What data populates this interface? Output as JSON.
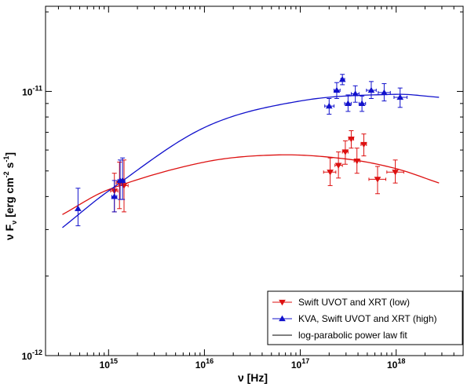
{
  "chart_data": {
    "type": "scatter",
    "title": "",
    "xlabel": "ν [Hz]",
    "ylabel": "ν F_ν [erg cm^-2 s^-1]",
    "xscale": "log",
    "yscale": "log",
    "xlim": [
      220000000000000.0,
      5e+18
    ],
    "ylim": [
      1e-12,
      2.1e-11
    ],
    "x_tick_labels": [
      {
        "mantissa": "10",
        "exp": "15",
        "value": 1000000000000000.0
      },
      {
        "mantissa": "10",
        "exp": "16",
        "value": 1e+16
      },
      {
        "mantissa": "10",
        "exp": "17",
        "value": 1e+17
      },
      {
        "mantissa": "10",
        "exp": "18",
        "value": 1e+18
      }
    ],
    "y_tick_labels": [
      {
        "mantissa": "10",
        "exp": "-12",
        "value": 1e-12
      },
      {
        "mantissa": "10",
        "exp": "-11",
        "value": 1e-11
      }
    ],
    "grid": false,
    "legend_position": "bottom-right",
    "series": [
      {
        "name": "Swift UVOT and XRT (low)",
        "color": "#dd1111",
        "marker": "triangle-down",
        "points": [
          {
            "x": 1150000000000000.0,
            "y": 4.2e-12,
            "xerr": [
              1050000000000000.0,
              1250000000000000.0
            ],
            "yerr": [
              3.5e-12,
              4.9e-12
            ]
          },
          {
            "x": 1300000000000000.0,
            "y": 4.5e-12,
            "xerr": [
              1200000000000000.0,
              1400000000000000.0
            ],
            "yerr": [
              3.6e-12,
              5.4e-12
            ]
          },
          {
            "x": 1450000000000000.0,
            "y": 4.4e-12,
            "xerr": [
              1300000000000000.0,
              1600000000000000.0
            ],
            "yerr": [
              3.5e-12,
              5.5e-12
            ]
          },
          {
            "x": 2.05e+17,
            "y": 4.95e-12,
            "xerr": [
              1.75e+17,
              2.35e+17
            ],
            "yerr": [
              4.4e-12,
              5.6e-12
            ]
          },
          {
            "x": 2.5e+17,
            "y": 5.25e-12,
            "xerr": [
              2.3e+17,
              2.75e+17
            ],
            "yerr": [
              4.7e-12,
              5.9e-12
            ]
          },
          {
            "x": 2.95e+17,
            "y": 5.9e-12,
            "xerr": [
              2.75e+17,
              3.15e+17
            ],
            "yerr": [
              5.3e-12,
              6.5e-12
            ]
          },
          {
            "x": 3.4e+17,
            "y": 6.6e-12,
            "xerr": [
              3.2e+17,
              3.6e+17
            ],
            "yerr": [
              6.1e-12,
              7.1e-12
            ]
          },
          {
            "x": 3.9e+17,
            "y": 5.45e-12,
            "xerr": [
              3.65e+17,
              4.2e+17
            ],
            "yerr": [
              4.9e-12,
              6.1e-12
            ]
          },
          {
            "x": 4.6e+17,
            "y": 6.3e-12,
            "xerr": [
              4.3e+17,
              4.9e+17
            ],
            "yerr": [
              5.7e-12,
              6.9e-12
            ]
          },
          {
            "x": 6.4e+17,
            "y": 4.65e-12,
            "xerr": [
              5.2e+17,
              7.8e+17
            ],
            "yerr": [
              4.1e-12,
              5.2e-12
            ]
          },
          {
            "x": 9.8e+17,
            "y": 4.95e-12,
            "xerr": [
              8e+17,
              1.2e+18
            ],
            "yerr": [
              4.5e-12,
              5.5e-12
            ]
          }
        ]
      },
      {
        "name": "KVA, Swift UVOT and XRT (high)",
        "color": "#1111cc",
        "marker": "triangle-up",
        "points": [
          {
            "x": 480000000000000.0,
            "y": 3.6e-12,
            "xerr": [
              480000000000000.0,
              480000000000000.0
            ],
            "yerr": [
              3.1e-12,
              4.3e-12
            ]
          },
          {
            "x": 1150000000000000.0,
            "y": 4e-12,
            "xerr": [
              1080000000000000.0,
              1220000000000000.0
            ],
            "yerr": [
              3.5e-12,
              4.6e-12
            ]
          },
          {
            "x": 1320000000000000.0,
            "y": 4.6e-12,
            "xerr": [
              1250000000000000.0,
              1400000000000000.0
            ],
            "yerr": [
              3.9e-12,
              5.5e-12
            ]
          },
          {
            "x": 1400000000000000.0,
            "y": 4.6e-12,
            "xerr": [
              1330000000000000.0,
              1480000000000000.0
            ],
            "yerr": [
              3.9e-12,
              5.6e-12
            ]
          },
          {
            "x": 2e+17,
            "y": 8.8e-12,
            "xerr": [
              1.8e+17,
              2.25e+17
            ],
            "yerr": [
              8.2e-12,
              9.4e-12
            ]
          },
          {
            "x": 2.4e+17,
            "y": 1.01e-11,
            "xerr": [
              2.25e+17,
              2.6e+17
            ],
            "yerr": [
              9.4e-12,
              1.08e-11
            ]
          },
          {
            "x": 2.75e+17,
            "y": 1.11e-11,
            "xerr": [
              2.65e+17,
              2.9e+17
            ],
            "yerr": [
              1.06e-11,
              1.16e-11
            ]
          },
          {
            "x": 3.15e+17,
            "y": 9e-12,
            "xerr": [
              2.9e+17,
              3.4e+17
            ],
            "yerr": [
              8.4e-12,
              9.7e-12
            ]
          },
          {
            "x": 3.75e+17,
            "y": 9.8e-12,
            "xerr": [
              3.4e+17,
              4.1e+17
            ],
            "yerr": [
              9.1e-12,
              1.05e-11
            ]
          },
          {
            "x": 4.4e+17,
            "y": 9e-12,
            "xerr": [
              4.1e+17,
              4.8e+17
            ],
            "yerr": [
              8.4e-12,
              9.6e-12
            ]
          },
          {
            "x": 5.5e+17,
            "y": 1.01e-11,
            "xerr": [
              4.9e+17,
              6.2e+17
            ],
            "yerr": [
              9.4e-12,
              1.09e-11
            ]
          },
          {
            "x": 7.5e+17,
            "y": 9.9e-12,
            "xerr": [
              6.5e+17,
              8.7e+17
            ],
            "yerr": [
              9.2e-12,
              1.07e-11
            ]
          },
          {
            "x": 1.1e+18,
            "y": 9.5e-12,
            "xerr": [
              9.5e+17,
              1.3e+18
            ],
            "yerr": [
              8.7e-12,
              1.03e-11
            ]
          }
        ]
      }
    ],
    "fits": [
      {
        "color": "#dd1111",
        "x_range": [
          330000000000000.0,
          2.8e+18
        ],
        "points": [
          [
            330000000000000.0,
            3.42e-12
          ],
          [
            1000000000000000.0,
            4.25e-12
          ],
          [
            1e+16,
            5.4e-12
          ],
          [
            6e+16,
            5.75e-12
          ],
          [
            3e+17,
            5.55e-12
          ],
          [
            1e+18,
            5.1e-12
          ],
          [
            2.8e+18,
            4.5e-12
          ]
        ]
      },
      {
        "color": "#1111cc",
        "x_range": [
          330000000000000.0,
          2.8e+18
        ],
        "points": [
          [
            330000000000000.0,
            3.05e-12
          ],
          [
            1000000000000000.0,
            4.2e-12
          ],
          [
            1e+16,
            7.3e-12
          ],
          [
            1e+17,
            9.2e-12
          ],
          [
            1e+18,
            9.75e-12
          ],
          [
            2.8e+18,
            9.5e-12
          ]
        ]
      }
    ],
    "legend": [
      {
        "label": "Swift UVOT and XRT (low)",
        "color": "#dd1111",
        "marker": "triangle-down"
      },
      {
        "label": "KVA, Swift UVOT and XRT (high)",
        "color": "#1111cc",
        "marker": "triangle-up"
      },
      {
        "label": "log-parabolic power law fit",
        "color": "#000000",
        "marker": "line"
      }
    ]
  }
}
